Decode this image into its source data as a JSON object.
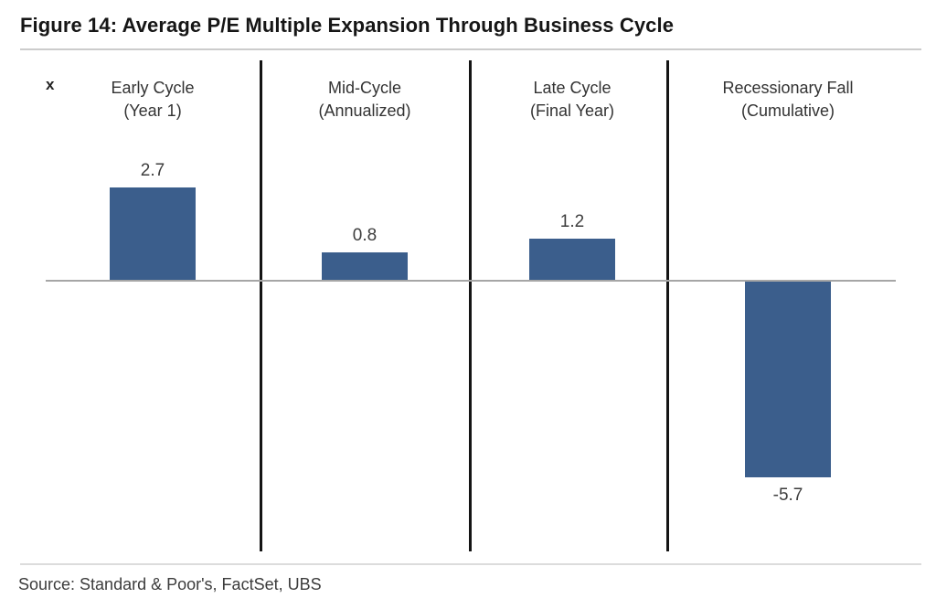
{
  "title": "Figure 14: Average P/E Multiple Expansion Through Business Cycle",
  "axis_unit_label": "x",
  "source": "Source: Standard & Poor's, FactSet, UBS",
  "colors": {
    "bar": "#3b5e8c",
    "panel_divider": "#141414",
    "zero_line": "#a6a6a6",
    "rule": "#cccccc",
    "title_text": "#161616",
    "label_text": "#333333"
  },
  "chart_data": {
    "type": "bar",
    "categories": [
      "Early Cycle (Year 1)",
      "Mid-Cycle (Annualized)",
      "Late Cycle (Final Year)",
      "Recessionary Fall (Cumulative)"
    ],
    "values": [
      2.7,
      0.8,
      1.2,
      -5.7
    ],
    "value_labels": [
      "2.7",
      "0.8",
      "1.2",
      "-5.7"
    ],
    "title": "Figure 14: Average P/E Multiple Expansion Through Business Cycle",
    "xlabel": "",
    "ylabel": "x",
    "ylim": [
      -6.5,
      3.5
    ],
    "grid": false,
    "legend": false,
    "bar_color": "#3b5e8c",
    "layout_note": "four panels separated by vertical black lines, shared zero baseline, data labels at bar ends"
  },
  "panels": [
    {
      "line1": "Early Cycle",
      "line2": "(Year 1)",
      "value": "2.7"
    },
    {
      "line1": "Mid-Cycle",
      "line2": "(Annualized)",
      "value": "0.8"
    },
    {
      "line1": "Late Cycle",
      "line2": "(Final Year)",
      "value": "1.2"
    },
    {
      "line1": "Recessionary Fall",
      "line2": "(Cumulative)",
      "value": "-5.7"
    }
  ]
}
